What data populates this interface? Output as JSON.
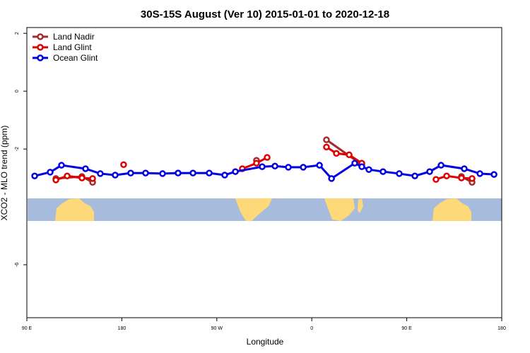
{
  "chart_data": {
    "type": "line",
    "title": "30S-15S August (Ver 10)   2015-01-01 to 2020-12-18",
    "x_label": "Longitude",
    "y_label": "XCO2 - MLO trend (ppm)",
    "xlim": [
      90,
      540
    ],
    "xticks": [
      {
        "value": 90,
        "label": "90 E"
      },
      {
        "value": 180,
        "label": "180"
      },
      {
        "value": 270,
        "label": "90 W"
      },
      {
        "value": 360,
        "label": "0"
      },
      {
        "value": 450,
        "label": "90 E"
      },
      {
        "value": 540,
        "label": "180"
      }
    ],
    "ylim": [
      -7.83,
      2.2
    ],
    "yticks": [
      2,
      0,
      -2,
      -6
    ],
    "legend": "top-left",
    "series": [
      {
        "name": "Land Nadir",
        "color": "#a52a2a",
        "x": [
          117.5,
          142.2,
          152.3,
          null,
          307.6,
          null,
          373.9,
          407.4,
          null,
          501.8,
          511.9
        ],
        "values": [
          -3.02,
          -2.95,
          -3.15,
          null,
          -2.39,
          null,
          -1.68,
          -2.54,
          null,
          -2.95,
          -3.15
        ]
      },
      {
        "name": "Land Glint",
        "color": "#e00000",
        "x": [
          117.5,
          128.2,
          142.2,
          152.3,
          null,
          181.7,
          null,
          294.2,
          307.6,
          317.7,
          null,
          373.9,
          383.3,
          395.4,
          407.4,
          null,
          477.7,
          487.8,
          501.8,
          511.9
        ],
        "values": [
          -3.07,
          -2.93,
          -3.0,
          -3.02,
          null,
          -2.54,
          null,
          -2.68,
          -2.49,
          -2.29,
          null,
          -1.93,
          -2.15,
          -2.2,
          -2.49,
          null,
          -3.05,
          -2.93,
          -3.0,
          -3.02
        ]
      },
      {
        "name": "Ocean Glint",
        "color": "#0000e0",
        "x": [
          97.4,
          112.1,
          122.8,
          145.6,
          159.6,
          173.7,
          188.4,
          202.5,
          218.6,
          233.3,
          247.4,
          262.8,
          277.5,
          287.6,
          313.0,
          325.1,
          337.8,
          351.9,
          367.3,
          378.7,
          400.7,
          407.4,
          414.1,
          427.5,
          442.9,
          457.7,
          471.7,
          482.5,
          504.5,
          519.3,
          532.7
        ],
        "values": [
          -2.93,
          -2.8,
          -2.56,
          -2.68,
          -2.85,
          -2.9,
          -2.83,
          -2.83,
          -2.85,
          -2.83,
          -2.83,
          -2.83,
          -2.9,
          -2.78,
          -2.61,
          -2.59,
          -2.63,
          -2.63,
          -2.56,
          -3.02,
          -2.49,
          -2.61,
          -2.71,
          -2.78,
          -2.85,
          -2.93,
          -2.78,
          -2.56,
          -2.68,
          -2.85,
          -2.88
        ]
      }
    ]
  }
}
